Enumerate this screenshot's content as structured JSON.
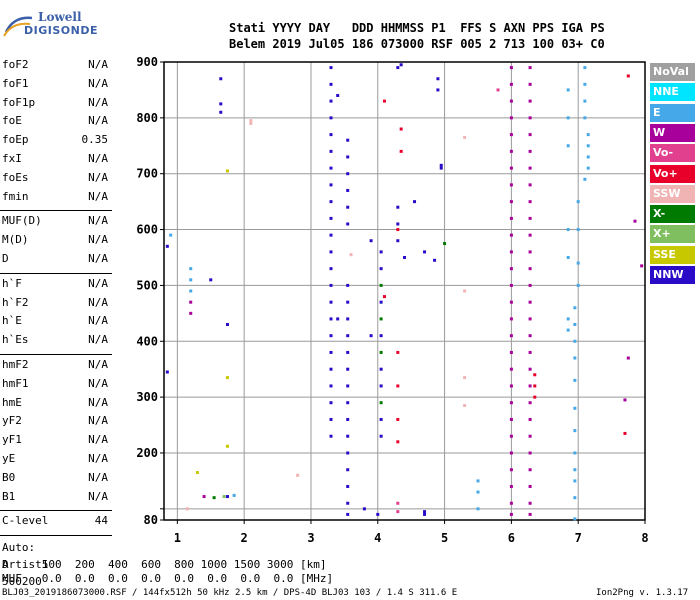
{
  "logo": {
    "line1": "Lowell",
    "line2": "DIGISONDE"
  },
  "header": {
    "labels": "Stati YYYY DAY   DDD HHMMSS P1  FFS S AXN PPS IGA PS",
    "values": "Belem 2019 Jul05 186 073000 RSF 005 2 713 100 03+ C0"
  },
  "params_group1": [
    {
      "k": "foF2",
      "v": "N/A"
    },
    {
      "k": "foF1",
      "v": "N/A"
    },
    {
      "k": "foF1p",
      "v": "N/A"
    },
    {
      "k": "foE",
      "v": "N/A"
    },
    {
      "k": "foEp",
      "v": "0.35"
    },
    {
      "k": "fxI",
      "v": "N/A"
    },
    {
      "k": "foEs",
      "v": "N/A"
    },
    {
      "k": "fmin",
      "v": "N/A"
    }
  ],
  "params_group2": [
    {
      "k": "MUF(D)",
      "v": "N/A"
    },
    {
      "k": "M(D)",
      "v": "N/A"
    },
    {
      "k": "D",
      "v": "N/A"
    }
  ],
  "params_group3": [
    {
      "k": "h`F",
      "v": "N/A"
    },
    {
      "k": "h`F2",
      "v": "N/A"
    },
    {
      "k": "h`E",
      "v": "N/A"
    },
    {
      "k": "h`Es",
      "v": "N/A"
    }
  ],
  "params_group4": [
    {
      "k": "hmF2",
      "v": "N/A"
    },
    {
      "k": "hmF1",
      "v": "N/A"
    },
    {
      "k": "hmE",
      "v": "N/A"
    },
    {
      "k": "yF2",
      "v": "N/A"
    },
    {
      "k": "yF1",
      "v": "N/A"
    },
    {
      "k": "yE",
      "v": "N/A"
    },
    {
      "k": "B0",
      "v": "N/A"
    },
    {
      "k": "B1",
      "v": "N/A"
    }
  ],
  "clevel": {
    "k": "C-level",
    "v": "44"
  },
  "auto": [
    "Auto:",
    "Artist5",
    "500200"
  ],
  "legend": [
    {
      "label": "NoVal",
      "color": "#a0a0a0"
    },
    {
      "label": "NNE",
      "color": "#00e5ff"
    },
    {
      "label": "E",
      "color": "#45a8e8"
    },
    {
      "label": "W",
      "color": "#a8009a"
    },
    {
      "label": "Vo-",
      "color": "#e0408e"
    },
    {
      "label": "Vo+",
      "color": "#e8002a"
    },
    {
      "label": "SSW",
      "color": "#f0b4b4"
    },
    {
      "label": "X-",
      "color": "#007a00"
    },
    {
      "label": "X+",
      "color": "#7fbf60"
    },
    {
      "label": "SSE",
      "color": "#c8c800"
    },
    {
      "label": "NNW",
      "color": "#2a0cc8"
    }
  ],
  "footer": {
    "d_row": "D     100  200  400  600  800 1000 1500 3000 [km]",
    "muf_row": "MUF   0.0  0.0  0.0  0.0  0.0  0.0  0.0  0.0 [MHz]",
    "file_info": "BLJ03_2019186073000.RSF / 144fx512h 50 kHz 2.5 km / DPS-4D BLJ03 103 / 1.4 S 311.6 E",
    "version": "Ion2Png v. 1.3.17"
  },
  "chart_data": {
    "type": "scatter",
    "xlim": [
      0.8,
      8.0
    ],
    "ylim": [
      80,
      900
    ],
    "x_ticks": [
      1,
      2,
      3,
      4,
      5,
      6,
      7,
      8
    ],
    "y_ticks": [
      80,
      100,
      200,
      300,
      400,
      500,
      600,
      700,
      800,
      900
    ],
    "y_labeled_ticks": [
      80,
      200,
      300,
      400,
      500,
      600,
      700,
      800,
      900
    ],
    "x_grid": [
      1,
      2,
      3,
      4,
      5,
      6,
      7,
      8
    ],
    "y_grid": [
      100,
      200,
      300,
      400,
      500,
      600,
      700,
      800,
      900
    ],
    "points": [
      [
        3.3,
        890,
        "NNW"
      ],
      [
        3.3,
        860,
        "NNW"
      ],
      [
        3.3,
        830,
        "NNW"
      ],
      [
        3.3,
        800,
        "NNW"
      ],
      [
        3.3,
        770,
        "NNW"
      ],
      [
        3.3,
        740,
        "NNW"
      ],
      [
        3.3,
        710,
        "NNW"
      ],
      [
        3.3,
        680,
        "NNW"
      ],
      [
        3.3,
        650,
        "NNW"
      ],
      [
        3.3,
        620,
        "NNW"
      ],
      [
        3.3,
        590,
        "NNW"
      ],
      [
        3.3,
        560,
        "NNW"
      ],
      [
        3.3,
        530,
        "NNW"
      ],
      [
        3.3,
        500,
        "NNW"
      ],
      [
        3.3,
        470,
        "NNW"
      ],
      [
        3.3,
        440,
        "NNW"
      ],
      [
        3.3,
        410,
        "NNW"
      ],
      [
        3.3,
        380,
        "NNW"
      ],
      [
        3.3,
        350,
        "NNW"
      ],
      [
        3.3,
        320,
        "NNW"
      ],
      [
        3.3,
        290,
        "NNW"
      ],
      [
        3.3,
        260,
        "NNW"
      ],
      [
        3.3,
        230,
        "NNW"
      ],
      [
        3.55,
        760,
        "NNW"
      ],
      [
        3.55,
        730,
        "NNW"
      ],
      [
        3.55,
        700,
        "NNW"
      ],
      [
        3.55,
        670,
        "NNW"
      ],
      [
        3.55,
        640,
        "NNW"
      ],
      [
        3.55,
        610,
        "NNW"
      ],
      [
        3.55,
        500,
        "NNW"
      ],
      [
        3.55,
        470,
        "NNW"
      ],
      [
        3.55,
        440,
        "NNW"
      ],
      [
        3.55,
        410,
        "NNW"
      ],
      [
        3.55,
        380,
        "NNW"
      ],
      [
        3.55,
        350,
        "NNW"
      ],
      [
        3.55,
        320,
        "NNW"
      ],
      [
        3.55,
        290,
        "NNW"
      ],
      [
        3.55,
        260,
        "NNW"
      ],
      [
        3.55,
        230,
        "NNW"
      ],
      [
        3.55,
        200,
        "NNW"
      ],
      [
        3.55,
        170,
        "NNW"
      ],
      [
        3.55,
        140,
        "NNW"
      ],
      [
        3.55,
        110,
        "NNW"
      ],
      [
        3.55,
        90,
        "NNW"
      ],
      [
        4.05,
        560,
        "NNW"
      ],
      [
        4.05,
        530,
        "NNW"
      ],
      [
        4.05,
        500,
        "X-"
      ],
      [
        4.05,
        470,
        "NNW"
      ],
      [
        4.05,
        440,
        "X-"
      ],
      [
        4.05,
        410,
        "NNW"
      ],
      [
        4.05,
        380,
        "X-"
      ],
      [
        4.05,
        350,
        "NNW"
      ],
      [
        4.05,
        320,
        "NNW"
      ],
      [
        4.05,
        290,
        "X-"
      ],
      [
        4.05,
        260,
        "NNW"
      ],
      [
        4.05,
        230,
        "NNW"
      ],
      [
        4.3,
        890,
        "NNW"
      ],
      [
        4.3,
        640,
        "NNW"
      ],
      [
        4.3,
        610,
        "NNW"
      ],
      [
        4.3,
        580,
        "NNW"
      ],
      [
        4.35,
        895,
        "NNW"
      ],
      [
        6.0,
        890,
        "W"
      ],
      [
        6.0,
        860,
        "W"
      ],
      [
        6.0,
        830,
        "W"
      ],
      [
        6.0,
        800,
        "W"
      ],
      [
        6.0,
        770,
        "W"
      ],
      [
        6.0,
        740,
        "W"
      ],
      [
        6.0,
        710,
        "W"
      ],
      [
        6.0,
        680,
        "W"
      ],
      [
        6.0,
        650,
        "W"
      ],
      [
        6.0,
        620,
        "W"
      ],
      [
        6.0,
        590,
        "W"
      ],
      [
        6.0,
        560,
        "W"
      ],
      [
        6.0,
        530,
        "W"
      ],
      [
        6.0,
        500,
        "W"
      ],
      [
        6.0,
        470,
        "W"
      ],
      [
        6.0,
        440,
        "W"
      ],
      [
        6.0,
        410,
        "W"
      ],
      [
        6.0,
        380,
        "W"
      ],
      [
        6.0,
        350,
        "W"
      ],
      [
        6.0,
        320,
        "W"
      ],
      [
        6.0,
        290,
        "W"
      ],
      [
        6.0,
        260,
        "W"
      ],
      [
        6.0,
        230,
        "W"
      ],
      [
        6.0,
        200,
        "W"
      ],
      [
        6.0,
        170,
        "W"
      ],
      [
        6.0,
        140,
        "W"
      ],
      [
        6.0,
        110,
        "W"
      ],
      [
        6.0,
        90,
        "W"
      ],
      [
        6.28,
        890,
        "W"
      ],
      [
        6.28,
        860,
        "W"
      ],
      [
        6.28,
        830,
        "W"
      ],
      [
        6.28,
        800,
        "W"
      ],
      [
        6.28,
        770,
        "W"
      ],
      [
        6.28,
        740,
        "W"
      ],
      [
        6.28,
        710,
        "W"
      ],
      [
        6.28,
        680,
        "W"
      ],
      [
        6.28,
        650,
        "W"
      ],
      [
        6.28,
        620,
        "W"
      ],
      [
        6.28,
        590,
        "W"
      ],
      [
        6.28,
        560,
        "W"
      ],
      [
        6.28,
        530,
        "W"
      ],
      [
        6.28,
        500,
        "W"
      ],
      [
        6.28,
        470,
        "W"
      ],
      [
        6.28,
        440,
        "W"
      ],
      [
        6.28,
        410,
        "W"
      ],
      [
        6.28,
        380,
        "W"
      ],
      [
        6.28,
        350,
        "W"
      ],
      [
        6.28,
        320,
        "W"
      ],
      [
        6.28,
        290,
        "W"
      ],
      [
        6.28,
        260,
        "W"
      ],
      [
        6.28,
        230,
        "W"
      ],
      [
        6.28,
        200,
        "W"
      ],
      [
        6.28,
        170,
        "W"
      ],
      [
        6.28,
        140,
        "W"
      ],
      [
        6.28,
        110,
        "W"
      ],
      [
        6.28,
        90,
        "W"
      ],
      [
        7.1,
        890,
        "E"
      ],
      [
        7.1,
        860,
        "E"
      ],
      [
        7.1,
        830,
        "E"
      ],
      [
        7.1,
        800,
        "E"
      ],
      [
        7.15,
        770,
        "E"
      ],
      [
        7.15,
        750,
        "E"
      ],
      [
        7.15,
        730,
        "E"
      ],
      [
        7.15,
        710,
        "E"
      ],
      [
        7.1,
        690,
        "E"
      ],
      [
        7.0,
        650,
        "E"
      ],
      [
        7.0,
        600,
        "E"
      ],
      [
        7.0,
        540,
        "E"
      ],
      [
        7.0,
        500,
        "E"
      ],
      [
        6.95,
        460,
        "E"
      ],
      [
        6.95,
        430,
        "E"
      ],
      [
        6.95,
        400,
        "E"
      ],
      [
        6.95,
        370,
        "E"
      ],
      [
        6.95,
        330,
        "E"
      ],
      [
        6.95,
        280,
        "E"
      ],
      [
        6.95,
        240,
        "E"
      ],
      [
        6.95,
        200,
        "E"
      ],
      [
        6.95,
        170,
        "E"
      ],
      [
        6.95,
        150,
        "E"
      ],
      [
        6.95,
        120,
        "E"
      ],
      [
        6.95,
        82,
        "E"
      ],
      [
        6.85,
        850,
        "E"
      ],
      [
        6.85,
        800,
        "E"
      ],
      [
        6.85,
        750,
        "E"
      ],
      [
        6.85,
        600,
        "E"
      ],
      [
        6.85,
        550,
        "E"
      ],
      [
        6.85,
        440,
        "E"
      ],
      [
        6.85,
        420,
        "E"
      ],
      [
        1.2,
        530,
        "E"
      ],
      [
        1.2,
        510,
        "E"
      ],
      [
        1.2,
        490,
        "E"
      ],
      [
        0.9,
        590,
        "E"
      ],
      [
        0.85,
        570,
        "NNW"
      ],
      [
        0.85,
        345,
        "NNW"
      ],
      [
        1.2,
        470,
        "W"
      ],
      [
        1.2,
        450,
        "W"
      ],
      [
        1.65,
        870,
        "NNW"
      ],
      [
        1.65,
        825,
        "NNW"
      ],
      [
        1.65,
        810,
        "NNW"
      ],
      [
        1.75,
        430,
        "NNW"
      ],
      [
        1.5,
        510,
        "NNW"
      ],
      [
        1.75,
        122,
        "NNW"
      ],
      [
        1.85,
        124,
        "E"
      ],
      [
        1.7,
        122,
        "X+"
      ],
      [
        1.55,
        120,
        "X-"
      ],
      [
        1.4,
        122,
        "W"
      ],
      [
        1.3,
        165,
        "SSE"
      ],
      [
        1.15,
        100,
        "SSW"
      ],
      [
        2.1,
        790,
        "SSW"
      ],
      [
        2.1,
        795,
        "SSW"
      ],
      [
        1.75,
        705,
        "SSE"
      ],
      [
        1.75,
        335,
        "SSE"
      ],
      [
        1.75,
        212,
        "SSE"
      ],
      [
        2.8,
        160,
        "SSW"
      ],
      [
        3.6,
        555,
        "SSW"
      ],
      [
        4.9,
        870,
        "NNW"
      ],
      [
        4.9,
        850,
        "NNW"
      ],
      [
        4.95,
        710,
        "NNW"
      ],
      [
        4.95,
        715,
        "NNW"
      ],
      [
        5.0,
        575,
        "X-"
      ],
      [
        4.7,
        560,
        "NNW"
      ],
      [
        4.85,
        545,
        "NNW"
      ],
      [
        4.7,
        95,
        "NNW"
      ],
      [
        4.7,
        90,
        "NNW"
      ],
      [
        4.3,
        95,
        "Vo-"
      ],
      [
        4.3,
        110,
        "Vo-"
      ],
      [
        4.0,
        90,
        "NNW"
      ],
      [
        4.35,
        780,
        "Vo+"
      ],
      [
        4.35,
        740,
        "Vo+"
      ],
      [
        4.3,
        600,
        "Vo+"
      ],
      [
        4.3,
        380,
        "Vo+"
      ],
      [
        4.3,
        320,
        "Vo+"
      ],
      [
        4.3,
        260,
        "Vo+"
      ],
      [
        4.3,
        220,
        "Vo+"
      ],
      [
        4.1,
        830,
        "Vo+"
      ],
      [
        4.1,
        480,
        "Vo+"
      ],
      [
        5.3,
        765,
        "SSW"
      ],
      [
        5.3,
        490,
        "SSW"
      ],
      [
        5.3,
        335,
        "SSW"
      ],
      [
        5.3,
        285,
        "SSW"
      ],
      [
        5.8,
        850,
        "Vo-"
      ],
      [
        5.5,
        150,
        "E"
      ],
      [
        5.5,
        130,
        "E"
      ],
      [
        5.5,
        100,
        "E"
      ],
      [
        6.35,
        340,
        "Vo+"
      ],
      [
        6.35,
        320,
        "Vo+"
      ],
      [
        6.35,
        300,
        "Vo+"
      ],
      [
        7.75,
        875,
        "Vo+"
      ],
      [
        7.75,
        370,
        "W"
      ],
      [
        7.7,
        295,
        "W"
      ],
      [
        7.7,
        235,
        "Vo+"
      ],
      [
        7.85,
        615,
        "W"
      ],
      [
        7.95,
        535,
        "W"
      ],
      [
        3.9,
        580,
        "NNW"
      ],
      [
        3.9,
        410,
        "NNW"
      ],
      [
        3.8,
        100,
        "NNW"
      ],
      [
        3.4,
        840,
        "NNW"
      ],
      [
        3.4,
        440,
        "NNW"
      ],
      [
        4.55,
        650,
        "NNW"
      ],
      [
        4.4,
        550,
        "NNW"
      ]
    ]
  }
}
